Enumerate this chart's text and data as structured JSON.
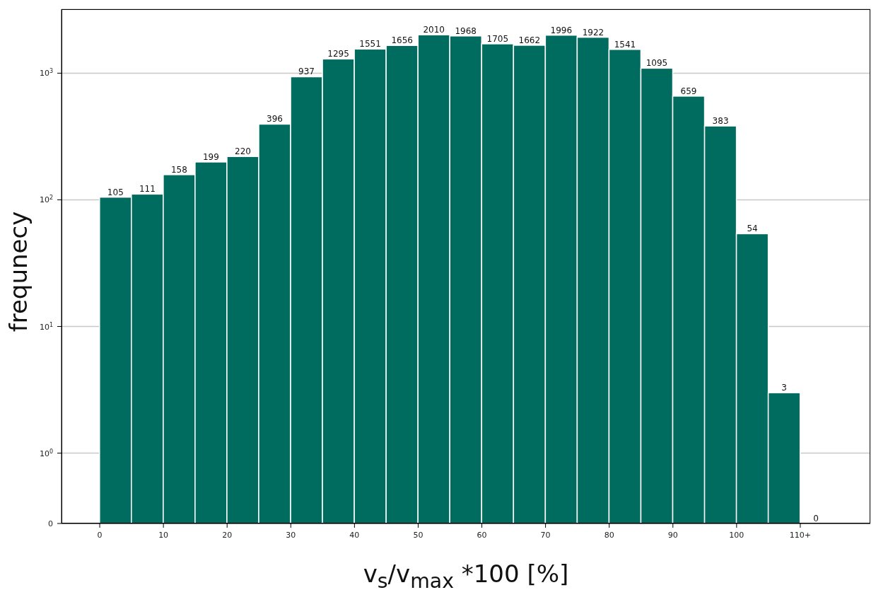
{
  "chart_data": {
    "type": "histogram",
    "xlabel": "v$_{s}$/v$_{max}$ *100 [%]",
    "ylabel": "frequnecy",
    "bins": [
      0,
      5,
      10,
      15,
      20,
      25,
      30,
      35,
      40,
      45,
      50,
      55,
      60,
      65,
      70,
      75,
      80,
      85,
      90,
      95,
      100,
      105,
      110,
      115
    ],
    "values": [
      105,
      111,
      158,
      199,
      220,
      396,
      937,
      1295,
      1551,
      1656,
      2010,
      1968,
      1705,
      1662,
      1996,
      1922,
      1541,
      1095,
      659,
      383,
      54,
      3,
      0
    ],
    "color": "#006b5f",
    "data_labels": true,
    "log": "y",
    "grid": "y",
    "xlim": [
      -6,
      121
    ],
    "xticks": [
      0,
      10,
      20,
      30,
      40,
      50,
      60,
      70,
      80,
      90,
      100,
      {
        "value": 110,
        "label": "110+"
      }
    ],
    "ylim": [
      0,
      3200
    ],
    "yticks": [
      0,
      {
        "value": 1,
        "label": "10$^{0}$"
      },
      {
        "value": 10,
        "label": "10$^{1}$"
      },
      {
        "value": 100,
        "label": "10$^{2}$"
      },
      {
        "value": 1000,
        "label": "10$^{3}$"
      }
    ]
  }
}
